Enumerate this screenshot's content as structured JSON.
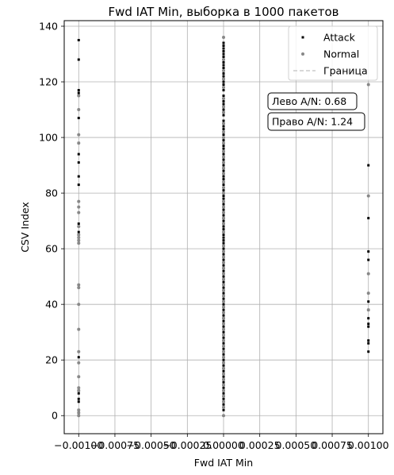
{
  "chart_data": {
    "type": "scatter",
    "title": "Fwd IAT Min, выборка в 1000 пакетов",
    "xlabel": "Fwd IAT Min",
    "ylabel": "CSV Index",
    "xlim": [
      -0.0011,
      0.0011
    ],
    "ylim": [
      -6.5,
      142
    ],
    "x_ticks": [
      -0.001,
      -0.00075,
      -0.0005,
      -0.00025,
      0,
      0.00025,
      0.0005,
      0.00075,
      0.001
    ],
    "x_tick_labels": [
      "−0.00100",
      "−0.00075",
      "−0.00050",
      "−0.00025",
      "0.00000",
      "0.00025",
      "0.00050",
      "0.00075",
      "0.00100"
    ],
    "y_ticks": [
      0,
      20,
      40,
      60,
      80,
      100,
      120,
      140
    ],
    "y_tick_labels": [
      "0",
      "20",
      "40",
      "60",
      "80",
      "100",
      "120",
      "140"
    ],
    "grid": true,
    "legend_position": "top-right",
    "legend": [
      {
        "label": "Attack",
        "marker": "square",
        "color": "#000000"
      },
      {
        "label": "Normal",
        "marker": "circle",
        "color": "#888888"
      },
      {
        "label": "Граница",
        "marker": "dashed-line",
        "color": "#cccccc"
      }
    ],
    "annotations": [
      {
        "text": "Лево A/N: 0.68",
        "x": 0.0003,
        "y": 113
      },
      {
        "text": "Право A/N: 1.24",
        "x": 0.0003,
        "y": 105.5
      }
    ],
    "boundary_x": 0,
    "series": [
      {
        "name": "Attack",
        "marker": "square",
        "color": "#000000",
        "groups": [
          {
            "x": -0.001,
            "y": [
              135,
              128,
              117,
              116,
              107,
              98,
              94,
              91,
              86,
              83,
              69,
              66,
              65,
              21,
              9,
              8,
              6,
              5,
              2,
              1
            ]
          },
          {
            "x": 0,
            "y": [
              134,
              133,
              132,
              131,
              130,
              129,
              127,
              126,
              125,
              123,
              122,
              120,
              119,
              117,
              115,
              113,
              112,
              110,
              108,
              106,
              104,
              103,
              101,
              99,
              97,
              96,
              94,
              92,
              90,
              88,
              86,
              85,
              83,
              81,
              79,
              78,
              76,
              74,
              72,
              70,
              68,
              67,
              65,
              64,
              63,
              62,
              60,
              58,
              56,
              54,
              52,
              50,
              48,
              46,
              44,
              42,
              40,
              38,
              36,
              34,
              32,
              30,
              28,
              26,
              24,
              22,
              20,
              18,
              16,
              14,
              12,
              10,
              8,
              6,
              4,
              2
            ]
          },
          {
            "x": 0.001,
            "y": [
              90,
              71,
              59,
              56,
              41,
              38,
              35,
              33,
              32,
              27,
              26,
              23
            ]
          }
        ]
      },
      {
        "name": "Normal",
        "marker": "circle",
        "color": "#888888",
        "groups": [
          {
            "x": -0.001,
            "y": [
              115,
              110,
              101,
              98,
              77,
              75,
              73,
              68,
              65,
              64,
              63,
              62,
              47,
              46,
              40,
              31,
              23,
              19,
              14,
              10,
              9,
              2,
              1,
              0
            ]
          },
          {
            "x": 0,
            "y": [
              136,
              128,
              124,
              121,
              118,
              114,
              111,
              109,
              105,
              102,
              100,
              98,
              95,
              93,
              91,
              89,
              87,
              84,
              82,
              80,
              77,
              75,
              73,
              71,
              69,
              66,
              61,
              59,
              57,
              55,
              53,
              51,
              49,
              47,
              45,
              43,
              41,
              39,
              37,
              35,
              33,
              31,
              29,
              27,
              25,
              23,
              21,
              19,
              17,
              15,
              13,
              11,
              9,
              7,
              5,
              3,
              0
            ]
          },
          {
            "x": 0.001,
            "y": [
              119,
              79,
              51,
              44,
              38
            ]
          }
        ]
      }
    ]
  }
}
